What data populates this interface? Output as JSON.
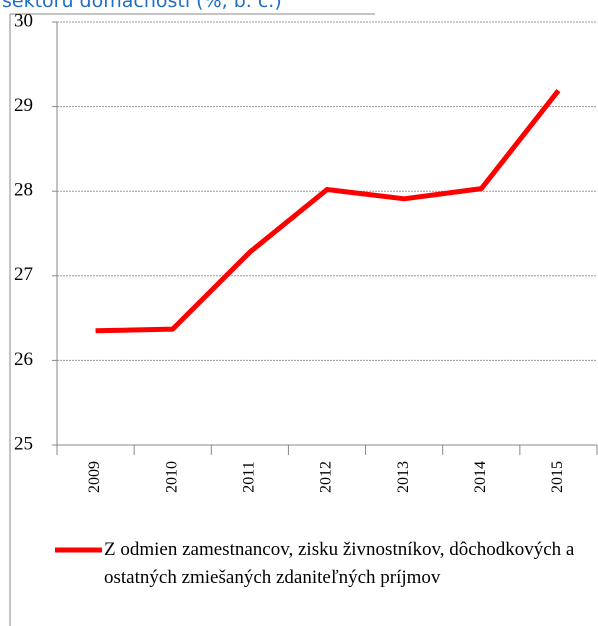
{
  "chart_data": {
    "type": "line",
    "title": "sektoru domácností (%, b. c.)",
    "categories": [
      "2009",
      "2010",
      "2011",
      "2012",
      "2013",
      "2014",
      "2015"
    ],
    "series": [
      {
        "name": "Z odmien zamestnancov, zisku živnostníkov, dôchodkových a ostatných zmiešaných zdaniteľných príjmov",
        "color": "#ff0000",
        "values": [
          26.35,
          26.37,
          27.28,
          28.02,
          27.91,
          28.03,
          29.19
        ]
      }
    ],
    "ylim": [
      25,
      30
    ],
    "yticks": [
      25,
      26,
      27,
      28,
      29,
      30
    ],
    "grid": true,
    "legend": "bottom"
  }
}
